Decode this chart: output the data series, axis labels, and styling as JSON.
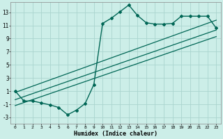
{
  "title": "",
  "xlabel": "Humidex (Indice chaleur)",
  "background_color": "#cceee8",
  "grid_color": "#aad4ce",
  "line_color": "#006655",
  "xlim": [
    -0.5,
    23.5
  ],
  "ylim": [
    -4,
    14.5
  ],
  "yticks": [
    -3,
    -1,
    1,
    3,
    5,
    7,
    9,
    11,
    13
  ],
  "xticks": [
    0,
    1,
    2,
    3,
    4,
    5,
    6,
    7,
    8,
    9,
    10,
    11,
    12,
    13,
    14,
    15,
    16,
    17,
    18,
    19,
    20,
    21,
    22,
    23
  ],
  "curve_x": [
    0,
    1,
    2,
    3,
    4,
    5,
    6,
    7,
    8,
    9,
    10,
    11,
    12,
    13,
    14,
    15,
    16,
    17,
    18,
    19,
    20,
    21,
    22,
    23
  ],
  "curve_y": [
    1.0,
    -0.5,
    -0.5,
    -0.8,
    -1.1,
    -1.5,
    -2.6,
    -1.9,
    -0.9,
    2.0,
    11.3,
    12.1,
    13.1,
    14.1,
    12.5,
    11.4,
    11.2,
    11.2,
    11.3,
    12.4,
    12.4,
    12.4,
    12.4,
    10.6
  ],
  "line1_x": [
    0,
    23
  ],
  "line1_y": [
    0.8,
    11.8
  ],
  "line2_x": [
    0,
    23
  ],
  "line2_y": [
    -0.3,
    10.3
  ],
  "line3_x": [
    0,
    23
  ],
  "line3_y": [
    -1.2,
    9.3
  ]
}
